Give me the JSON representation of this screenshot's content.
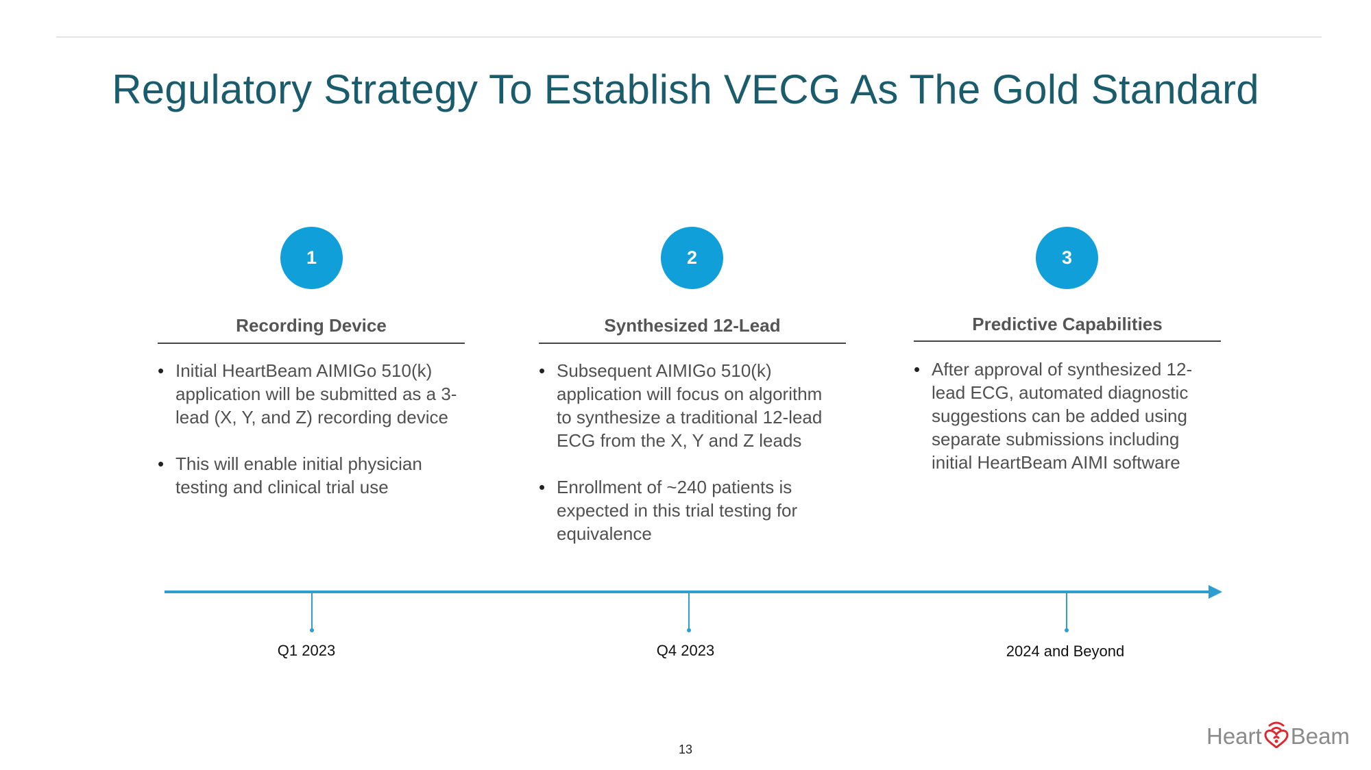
{
  "title": "Regulatory Strategy To Establish VECG As The Gold Standard",
  "steps": [
    {
      "number": "1",
      "heading": "Recording Device",
      "bullets": [
        "Initial HeartBeam AIMIGo 510(k) application will be submitted as a 3-lead (X, Y, and Z) recording device",
        "This will enable initial physician testing and clinical trial use"
      ]
    },
    {
      "number": "2",
      "heading": "Synthesized 12-Lead",
      "bullets": [
        "Subsequent AIMIGo 510(k) application will focus on algorithm to synthesize a traditional 12-lead ECG from the X, Y and Z leads",
        "Enrollment of  ~240 patients is expected in this trial testing for equivalence"
      ]
    },
    {
      "number": "3",
      "heading": "Predictive Capabilities",
      "bullets": [
        "After approval of synthesized 12-lead ECG, automated diagnostic suggestions can be added using separate submissions including initial HeartBeam AIMI software"
      ]
    }
  ],
  "timeline": {
    "milestones": [
      "Q1 2023",
      "Q4 2023",
      "2024 and Beyond"
    ],
    "color": "#2e9dd0"
  },
  "page_number": "13",
  "logo": {
    "left_text": "Heart",
    "right_text": "Beam",
    "icon": "heart-wifi-icon",
    "icon_color": "#e0262e"
  },
  "colors": {
    "title": "#1a5c6c",
    "step_circle": "#109fd8"
  }
}
